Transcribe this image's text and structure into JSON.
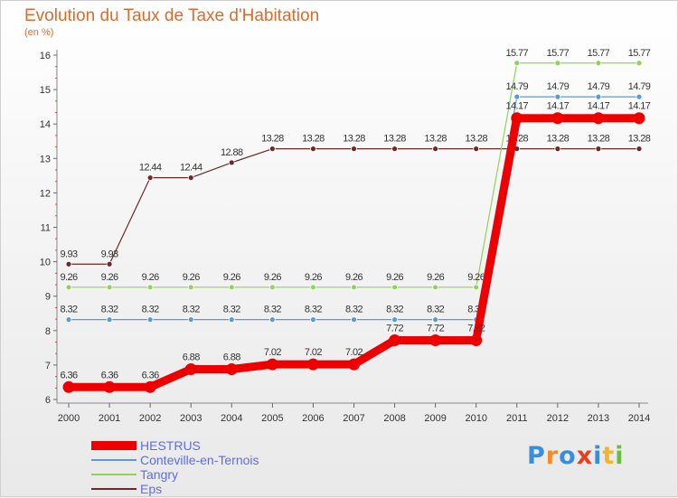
{
  "header": {
    "title": "Evolution du Taux de Taxe d'Habitation",
    "subtitle": "(en %)"
  },
  "logo": {
    "letters": [
      "P",
      "r",
      "o",
      "x",
      "i",
      "t",
      "i"
    ],
    "colors": [
      "#3a8ed8",
      "#f28c28",
      "#3a8ed8",
      "#e8401e",
      "#3a8ed8",
      "#f2b628",
      "#6abf3a"
    ]
  },
  "chart_data": {
    "type": "line",
    "x": [
      "2000",
      "2001",
      "2002",
      "2003",
      "2004",
      "2005",
      "2006",
      "2007",
      "2008",
      "2009",
      "2010",
      "2011",
      "2012",
      "2013",
      "2014"
    ],
    "ylim": [
      6,
      16
    ],
    "yticks": [
      6,
      7,
      8,
      9,
      10,
      11,
      12,
      13,
      14,
      15,
      16
    ],
    "grid": false,
    "legend_position": "bottom-left",
    "series": [
      {
        "name": "Eps",
        "color": "#6b2a2a",
        "values": [
          9.93,
          9.93,
          12.44,
          12.44,
          12.88,
          13.28,
          13.28,
          13.28,
          13.28,
          13.28,
          13.28,
          13.28,
          13.28,
          13.28,
          13.28
        ],
        "labels": [
          "9.93",
          "9.93",
          "12.44",
          "12.44",
          "12.88",
          "13.28",
          "13.28",
          "13.28",
          "13.28",
          "13.28",
          "13.28",
          "13.28",
          "13.28",
          "13.28",
          "13.28"
        ]
      },
      {
        "name": "Tangry",
        "color": "#8fd45a",
        "values": [
          9.26,
          9.26,
          9.26,
          9.26,
          9.26,
          9.26,
          9.26,
          9.26,
          9.26,
          9.26,
          9.26,
          15.77,
          15.77,
          15.77,
          15.77
        ],
        "labels": [
          "9.26",
          "9.26",
          "9.26",
          "9.26",
          "9.26",
          "9.26",
          "9.26",
          "9.26",
          "9.26",
          "9.26",
          "9.26",
          "15.77",
          "15.77",
          "15.77",
          "15.77"
        ]
      },
      {
        "name": "Conteville-en-Ternois",
        "color": "#5a9ad6",
        "values": [
          8.32,
          8.32,
          8.32,
          8.32,
          8.32,
          8.32,
          8.32,
          8.32,
          8.32,
          8.32,
          8.32,
          14.79,
          14.79,
          14.79,
          14.79
        ],
        "labels": [
          "8.32",
          "8.32",
          "8.32",
          "8.32",
          "8.32",
          "8.32",
          "8.32",
          "8.32",
          "8.32",
          "8.32",
          "8.32",
          "14.79",
          "14.79",
          "14.79",
          "14.79"
        ]
      },
      {
        "name": "HESTRUS",
        "color": "#ee0000",
        "values": [
          6.36,
          6.36,
          6.36,
          6.88,
          6.88,
          7.02,
          7.02,
          7.02,
          7.72,
          7.72,
          7.72,
          14.17,
          14.17,
          14.17,
          14.17
        ],
        "labels": [
          "6.36",
          "6.36",
          "6.36",
          "6.88",
          "6.88",
          "7.02",
          "7.02",
          "7.02",
          "7.72",
          "7.72",
          "7.72",
          "14.17",
          "14.17",
          "14.17",
          "14.17"
        ]
      }
    ],
    "legend": [
      "HESTRUS",
      "Conteville-en-Ternois",
      "Tangry",
      "Eps"
    ]
  }
}
